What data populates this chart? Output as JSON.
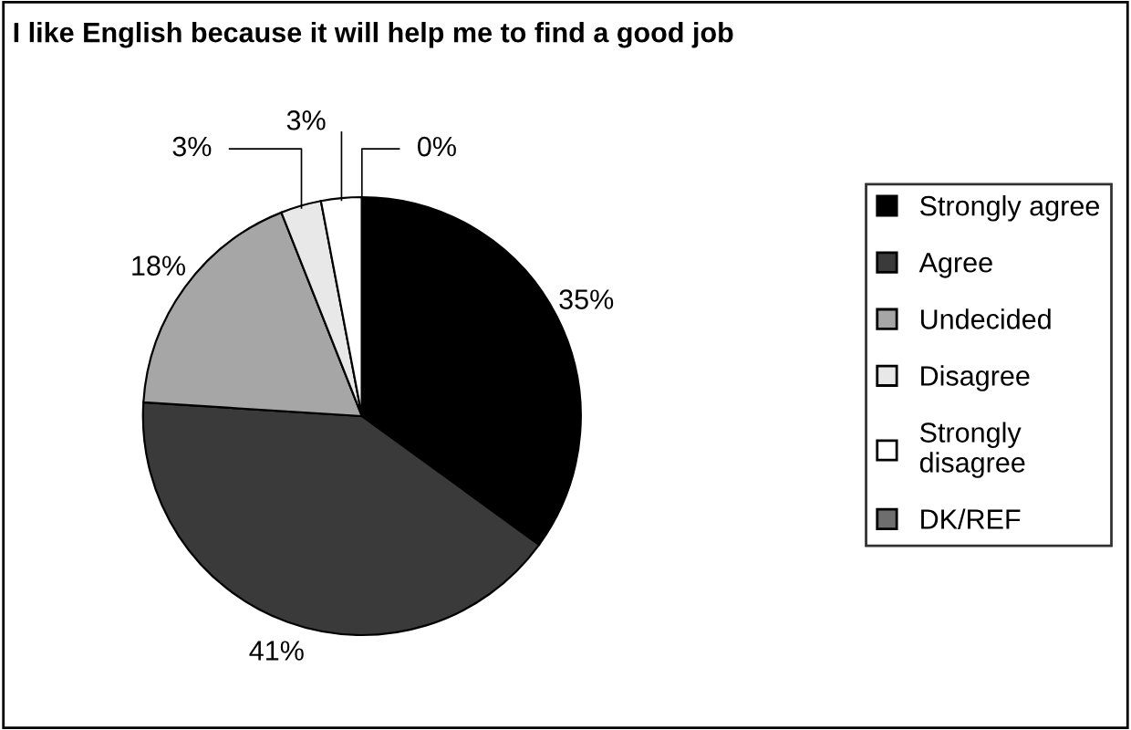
{
  "chart_data": {
    "type": "pie",
    "title": "I like English because it will help me to find a good job",
    "categories": [
      "Strongly agree",
      "Agree",
      "Undecided",
      "Disagree",
      "Strongly\ndisagree",
      "DK/REF"
    ],
    "values": [
      35,
      41,
      18,
      3,
      3,
      0
    ],
    "value_labels": [
      "35%",
      "41%",
      "18%",
      "3%",
      "3%",
      "0%"
    ],
    "colors": [
      "#000000",
      "#3a3a3a",
      "#a6a6a6",
      "#e8e8e8",
      "#ffffff",
      "#6e6e6e"
    ],
    "legend": "right"
  }
}
